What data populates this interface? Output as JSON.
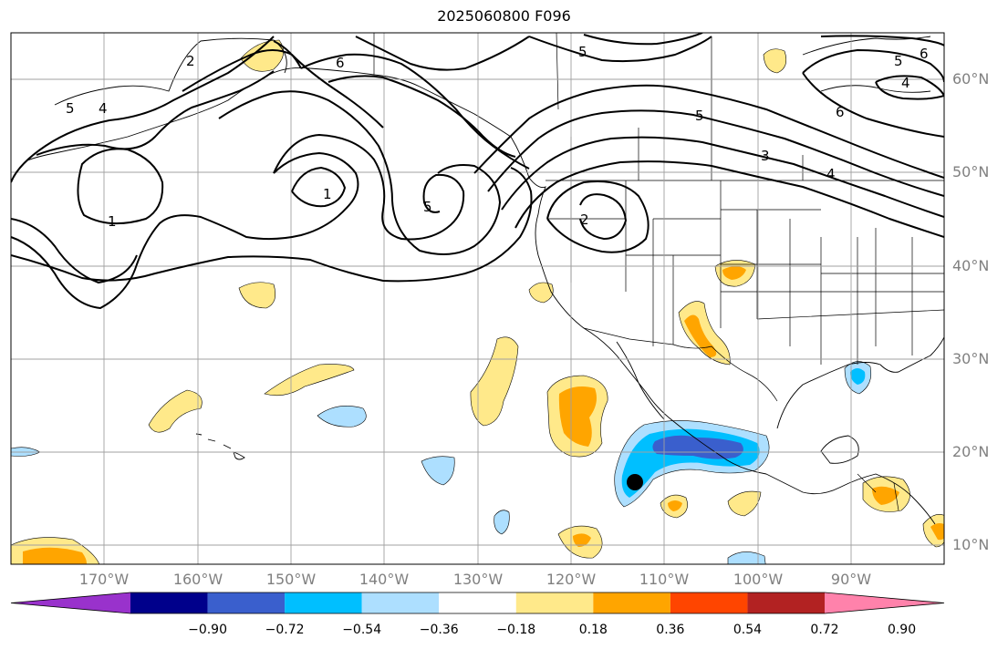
{
  "title": "2025060800 F096",
  "map": {
    "projection": "PlateCarree",
    "extent_lon": [
      -180,
      -80
    ],
    "extent_lat": [
      8,
      65
    ],
    "gridlines": true,
    "marker": {
      "lon": -113,
      "lat": 16.8,
      "color": "#000000"
    }
  },
  "longitude_labels": [
    "170°W",
    "160°W",
    "150°W",
    "140°W",
    "130°W",
    "120°W",
    "110°W",
    "100°W",
    "90°W"
  ],
  "latitude_labels": [
    "60°N",
    "50°N",
    "40°N",
    "30°N",
    "20°N",
    "10°N"
  ],
  "contour_labels": [
    "1",
    "1",
    "2",
    "2",
    "3",
    "4",
    "4",
    "4",
    "5",
    "5",
    "5",
    "5",
    "5",
    "6",
    "6",
    "6"
  ],
  "colorbar": {
    "colors": [
      "#9932CC",
      "#00008B",
      "#3A5FCD",
      "#00BFFF",
      "#ADDFFF",
      "#FFFFFF",
      "#FFE98A",
      "#FFA500",
      "#FF4500",
      "#B22222",
      "#FF82AB"
    ],
    "tick_labels": [
      "−0.90",
      "−0.72",
      "−0.54",
      "−0.36",
      "−0.18",
      "0.18",
      "0.36",
      "0.54",
      "0.72",
      "0.90"
    ]
  }
}
